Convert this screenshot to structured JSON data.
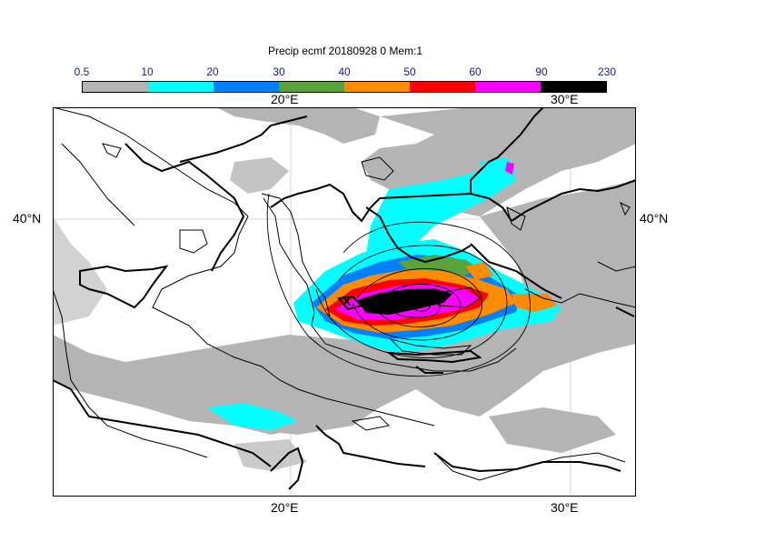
{
  "title": "Precip ecmf 20180928 0 Mem:1",
  "legend": {
    "levels": [
      "0.5",
      "10",
      "20",
      "30",
      "40",
      "50",
      "60",
      "90",
      "230"
    ],
    "colors": [
      "#b4b4b4",
      "#00ffff",
      "#0080ff",
      "#5ca23c",
      "#ff8c00",
      "#ff0000",
      "#ff00ff",
      "#000000"
    ]
  },
  "axes": {
    "lon_top": [
      "20°E",
      "30°E"
    ],
    "lon_bottom": [
      "20°E",
      "30°E"
    ],
    "lat_left": [
      "40°N"
    ],
    "lat_right": [
      "40°N"
    ]
  }
}
